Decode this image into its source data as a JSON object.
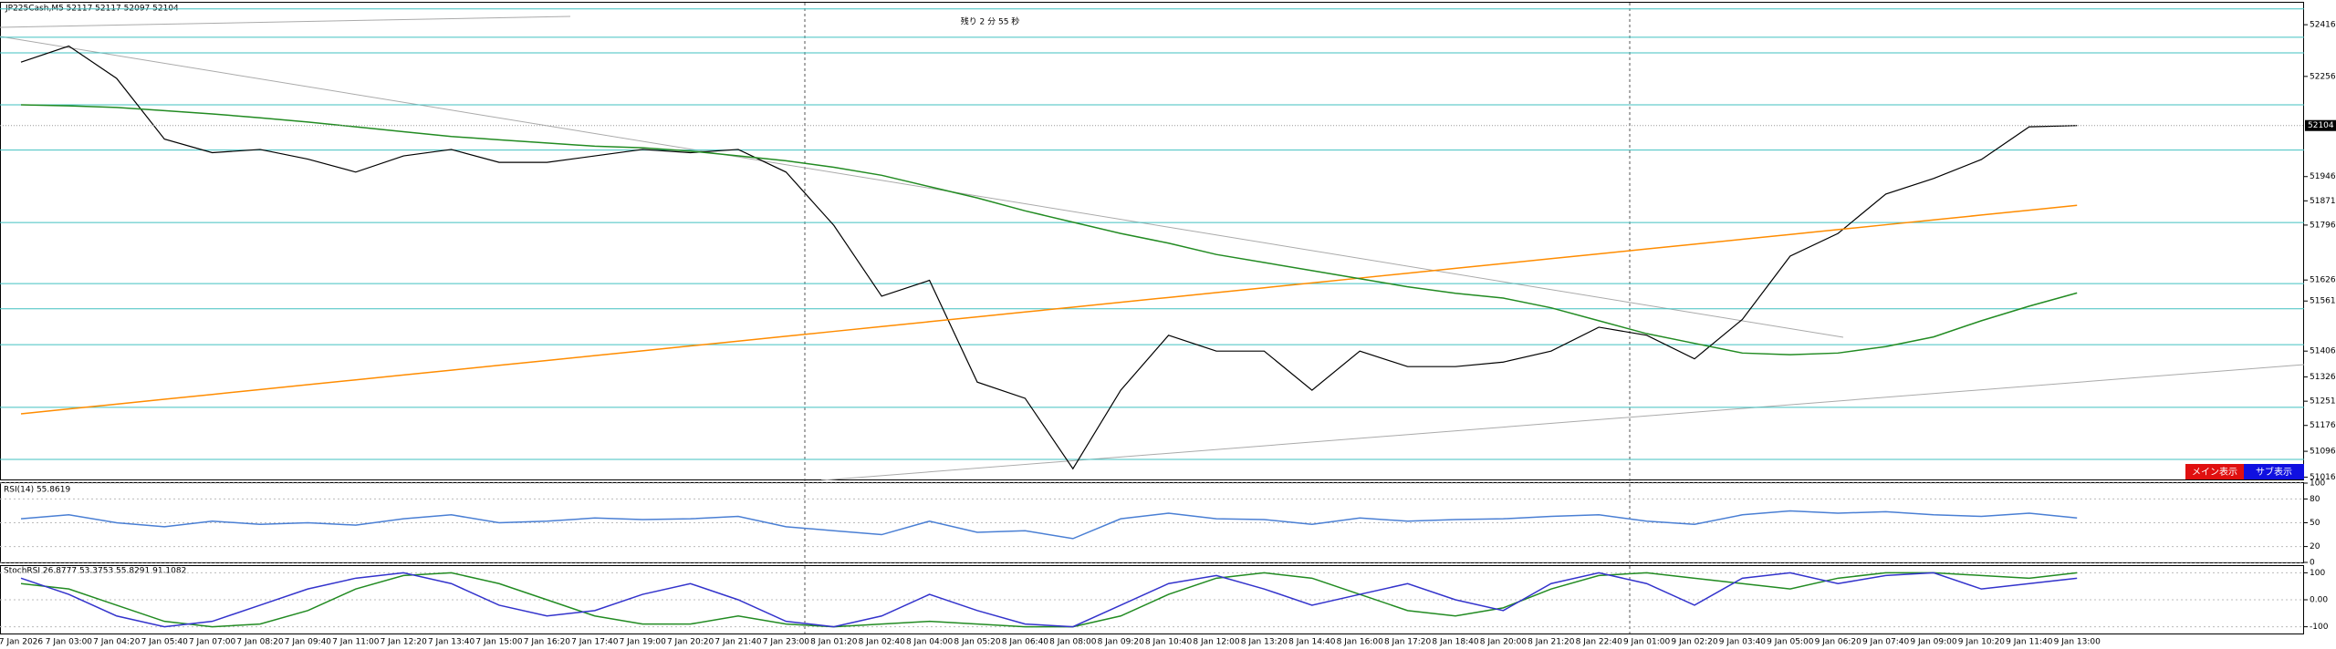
{
  "chart_data": [
    {
      "type": "line",
      "title": "JP225Cash,M5  52117 52117 52097 52104",
      "annotation": "残り 2 分 55 秒",
      "current_price": {
        "value": 52104,
        "label": "52104"
      },
      "categories": [
        "7 Jan 2026",
        "7 Jan 03:00",
        "7 Jan 04:20",
        "7 Jan 05:40",
        "7 Jan 07:00",
        "7 Jan 08:20",
        "7 Jan 09:40",
        "7 Jan 11:00",
        "7 Jan 12:20",
        "7 Jan 13:40",
        "7 Jan 15:00",
        "7 Jan 16:20",
        "7 Jan 17:40",
        "7 Jan 19:00",
        "7 Jan 20:20",
        "7 Jan 21:40",
        "7 Jan 23:00",
        "8 Jan 01:20",
        "8 Jan 02:40",
        "8 Jan 04:00",
        "8 Jan 05:20",
        "8 Jan 06:40",
        "8 Jan 08:00",
        "8 Jan 09:20",
        "8 Jan 10:40",
        "8 Jan 12:00",
        "8 Jan 13:20",
        "8 Jan 14:40",
        "8 Jan 16:00",
        "8 Jan 17:20",
        "8 Jan 18:40",
        "8 Jan 20:00",
        "8 Jan 21:20",
        "8 Jan 22:40",
        "9 Jan 01:00",
        "9 Jan 02:20",
        "9 Jan 03:40",
        "9 Jan 05:00",
        "9 Jan 06:20",
        "9 Jan 07:40",
        "9 Jan 09:00",
        "9 Jan 10:20",
        "9 Jan 11:40",
        "9 Jan 13:00"
      ],
      "series": [
        {
          "color": "#000000",
          "values": [
            52300,
            52350,
            52250,
            52062,
            52020,
            52030,
            52000,
            51960,
            52010,
            52030,
            51990,
            51990,
            52010,
            52030,
            52020,
            52030,
            51960,
            51795,
            51576,
            51625,
            51310,
            51260,
            51042,
            51285,
            51455,
            51406,
            51406,
            51285,
            51406,
            51358,
            51358,
            51372,
            51406,
            51480,
            51455,
            51382,
            51504,
            51700,
            51770,
            51892,
            51940,
            51999,
            52100,
            52104
          ]
        },
        {
          "color": "#ff8c00",
          "values": [
            51212,
            51227,
            51242,
            51257,
            51272,
            51287,
            51302,
            51317,
            51332,
            51347,
            51362,
            51377,
            51392,
            51407,
            51422,
            51437,
            51452,
            51467,
            51482,
            51497,
            51512,
            51527,
            51542,
            51557,
            51572,
            51587,
            51602,
            51617,
            51632,
            51647,
            51662,
            51677,
            51692,
            51707,
            51722,
            51737,
            51752,
            51767,
            51782,
            51797,
            51812,
            51827,
            51842,
            51857
          ]
        },
        {
          "color": "#228b22",
          "values": [
            52168,
            52165,
            52160,
            52150,
            52140,
            52128,
            52115,
            52100,
            52085,
            52070,
            52060,
            52050,
            52040,
            52035,
            52025,
            52010,
            51995,
            51975,
            51950,
            51915,
            51880,
            51840,
            51805,
            51770,
            51740,
            51705,
            51680,
            51655,
            51630,
            51605,
            51585,
            51570,
            51540,
            51500,
            51460,
            51430,
            51400,
            51395,
            51400,
            51420,
            51450,
            51500,
            51545,
            51586
          ]
        }
      ],
      "levels": {
        "color": "#40c0c0",
        "values": [
          52465,
          52377,
          52329,
          52168,
          52028,
          51804,
          51615,
          51537,
          51426,
          51232,
          51071
        ]
      },
      "ylim": [
        51006,
        52484
      ],
      "yticks": [
        51016,
        51096,
        51176,
        51251,
        51326,
        51406,
        51561,
        51626,
        51796,
        51871,
        51946,
        52256,
        52416
      ],
      "buttons": [
        "メイン表示",
        "サブ表示"
      ]
    },
    {
      "type": "line",
      "title": "RSI(14) 55.8619",
      "series": [
        {
          "color": "#4a7fd4",
          "values": [
            55,
            60,
            50,
            45,
            52,
            48,
            50,
            47,
            55,
            60,
            50,
            52,
            56,
            54,
            55,
            58,
            45,
            40,
            35,
            52,
            38,
            40,
            30,
            55,
            62,
            55,
            54,
            48,
            56,
            52,
            54,
            55,
            58,
            60,
            52,
            48,
            60,
            65,
            62,
            64,
            60,
            58,
            62,
            56
          ]
        }
      ],
      "ylim": [
        0,
        100
      ],
      "yticks": [
        0,
        20,
        50,
        80,
        100
      ]
    },
    {
      "type": "line",
      "title": "StochRSI 26.8777 53.3753 55.8291 91.1082",
      "series": [
        {
          "color": "#228b22",
          "values": [
            60,
            40,
            -20,
            -80,
            -100,
            -90,
            -40,
            40,
            90,
            100,
            60,
            0,
            -60,
            -90,
            -90,
            -60,
            -90,
            -100,
            -90,
            -80,
            -90,
            -100,
            -100,
            -60,
            20,
            80,
            100,
            80,
            20,
            -40,
            -60,
            -30,
            40,
            90,
            100,
            80,
            60,
            40,
            80,
            100,
            100,
            90,
            80,
            100
          ]
        },
        {
          "color": "#3333cc",
          "values": [
            80,
            20,
            -60,
            -100,
            -80,
            -20,
            40,
            80,
            100,
            60,
            -20,
            -60,
            -40,
            20,
            60,
            0,
            -80,
            -100,
            -60,
            20,
            -40,
            -90,
            -100,
            -20,
            60,
            90,
            40,
            -20,
            20,
            60,
            0,
            -40,
            60,
            100,
            60,
            -20,
            80,
            100,
            60,
            90,
            100,
            40,
            60,
            80
          ]
        }
      ],
      "ylim": [
        -125,
        125
      ],
      "yticks": [
        -100,
        {
          "value": 0,
          "label": "0.00"
        },
        100
      ]
    }
  ]
}
